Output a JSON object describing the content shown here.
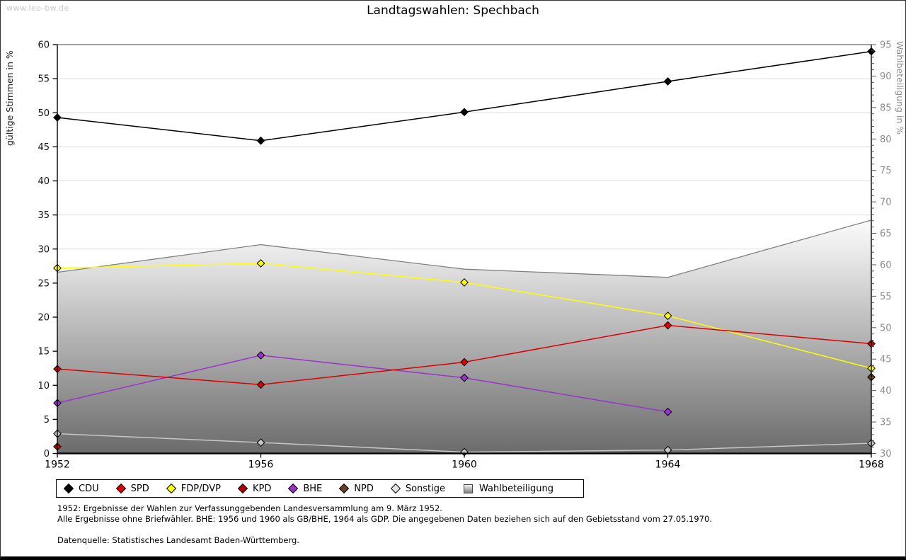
{
  "watermark": "www.leo-bw.de",
  "title": "Landtagswahlen: Spechbach",
  "axes": {
    "left_label": "gültige Stimmen in %",
    "right_label": "Wahlbeteiligung in %",
    "left_ticks": [
      0,
      5,
      10,
      15,
      20,
      25,
      30,
      35,
      40,
      45,
      50,
      55,
      60
    ],
    "right_ticks": [
      30,
      35,
      40,
      45,
      50,
      55,
      60,
      65,
      70,
      75,
      80,
      85,
      90,
      95
    ]
  },
  "chart_data": {
    "type": "line",
    "title": "Landtagswahlen: Spechbach",
    "categories": [
      "1952",
      "1956",
      "1960",
      "1964",
      "1968"
    ],
    "xlabel": "",
    "ylabel_left": "gültige Stimmen in %",
    "ylabel_right": "Wahlbeteiligung in %",
    "ylim_left": [
      0,
      60
    ],
    "ylim_right": [
      30,
      95
    ],
    "grid": true,
    "legend_position": "bottom",
    "series": [
      {
        "name": "CDU",
        "type": "line",
        "axis": "left",
        "color": "#000000",
        "values": [
          49.3,
          45.9,
          50.1,
          54.6,
          59.0
        ]
      },
      {
        "name": "SPD",
        "type": "line",
        "axis": "left",
        "color": "#dd0000",
        "values": [
          12.4,
          10.1,
          13.4,
          18.8,
          16.1
        ]
      },
      {
        "name": "FDP/DVP",
        "type": "line",
        "axis": "left",
        "color": "#ffff00",
        "values": [
          27.2,
          27.9,
          25.1,
          20.2,
          12.5
        ]
      },
      {
        "name": "KPD",
        "type": "line",
        "axis": "left",
        "color": "#b30000",
        "values": [
          1.0,
          null,
          null,
          null,
          null
        ]
      },
      {
        "name": "BHE",
        "type": "line",
        "axis": "left",
        "color": "#9933cc",
        "values": [
          7.4,
          14.4,
          11.1,
          6.1,
          null
        ]
      },
      {
        "name": "NPD",
        "type": "line",
        "axis": "left",
        "color": "#664020",
        "values": [
          null,
          null,
          null,
          null,
          11.2
        ]
      },
      {
        "name": "Sonstige",
        "type": "line",
        "axis": "left",
        "color": "#c6c6c6",
        "values": [
          2.9,
          1.6,
          0.2,
          0.5,
          1.5
        ]
      },
      {
        "name": "Wahlbeteiligung",
        "type": "area",
        "axis": "right",
        "color": "#808080",
        "values": [
          58.8,
          63.2,
          59.3,
          58.0,
          67.1
        ]
      }
    ]
  },
  "legend": {
    "items": [
      {
        "label": "CDU",
        "shape": "diamond",
        "color": "#000000"
      },
      {
        "label": "SPD",
        "shape": "diamond",
        "color": "#dd0000"
      },
      {
        "label": "FDP/DVP",
        "shape": "diamond",
        "color": "#ffff00"
      },
      {
        "label": "KPD",
        "shape": "diamond",
        "color": "#b30000"
      },
      {
        "label": "BHE",
        "shape": "diamond",
        "color": "#9933cc"
      },
      {
        "label": "NPD",
        "shape": "diamond",
        "color": "#664020"
      },
      {
        "label": "Sonstige",
        "shape": "diamond",
        "color": "#e4e4e4"
      },
      {
        "label": "Wahlbeteiligung",
        "shape": "square-gradient",
        "color": "#aaaaaa"
      }
    ]
  },
  "footnotes": {
    "line1": "1952: Ergebnisse der Wahlen zur Verfassunggebenden Landesversammlung am 9. März 1952.",
    "line2": "Alle Ergebnisse ohne Briefwähler. BHE: 1956 und 1960 als GB/BHE, 1964 als GDP. Die angegebenen Daten beziehen sich auf den Gebietsstand vom 27.05.1970.",
    "source": "Datenquelle: Statistisches Landesamt Baden-Württemberg."
  }
}
